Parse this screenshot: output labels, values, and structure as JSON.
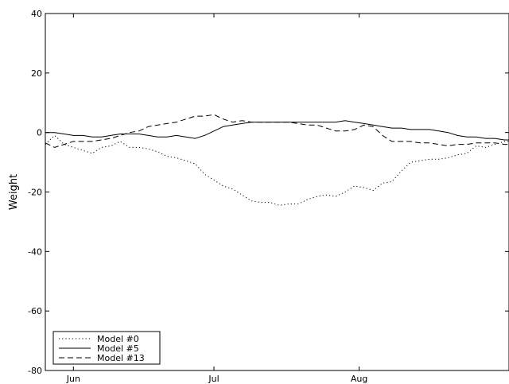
{
  "chart_data": {
    "type": "line",
    "ylabel": "Weight",
    "xlabel": "",
    "ylim": [
      -80,
      40
    ],
    "yticks": [
      40,
      20,
      0,
      -20,
      -40,
      -60,
      -80
    ],
    "xlim": [
      "2008-05-26",
      "2008-09-02"
    ],
    "xticks": [
      {
        "date": "2008-06-01",
        "label": "Jun"
      },
      {
        "date": "2008-07-01",
        "label": "Jul"
      },
      {
        "date": "2008-08-01",
        "label": "Aug"
      }
    ],
    "grid": false,
    "legend_position": "bottom-left",
    "series": [
      {
        "name": "Model #0",
        "style": "dotted",
        "points": [
          [
            "2008-05-26",
            -4
          ],
          [
            "2008-05-28",
            -1
          ],
          [
            "2008-05-30",
            -4
          ],
          [
            "2008-06-01",
            -5
          ],
          [
            "2008-06-03",
            -6
          ],
          [
            "2008-06-05",
            -7
          ],
          [
            "2008-06-07",
            -5
          ],
          [
            "2008-06-09",
            -4.5
          ],
          [
            "2008-06-11",
            -3
          ],
          [
            "2008-06-13",
            -5
          ],
          [
            "2008-06-15",
            -5
          ],
          [
            "2008-06-17",
            -5.5
          ],
          [
            "2008-06-19",
            -6.5
          ],
          [
            "2008-06-21",
            -8
          ],
          [
            "2008-06-23",
            -8.5
          ],
          [
            "2008-06-25",
            -9.5
          ],
          [
            "2008-06-27",
            -10.5
          ],
          [
            "2008-06-29",
            -14
          ],
          [
            "2008-07-01",
            -16
          ],
          [
            "2008-07-03",
            -18
          ],
          [
            "2008-07-05",
            -19
          ],
          [
            "2008-07-07",
            -21
          ],
          [
            "2008-07-09",
            -23
          ],
          [
            "2008-07-11",
            -23.5
          ],
          [
            "2008-07-13",
            -23.5
          ],
          [
            "2008-07-15",
            -24.5
          ],
          [
            "2008-07-17",
            -24
          ],
          [
            "2008-07-19",
            -24
          ],
          [
            "2008-07-21",
            -22.5
          ],
          [
            "2008-07-23",
            -21.5
          ],
          [
            "2008-07-25",
            -21
          ],
          [
            "2008-07-27",
            -21.5
          ],
          [
            "2008-07-29",
            -20
          ],
          [
            "2008-07-31",
            -18
          ],
          [
            "2008-08-02",
            -18.5
          ],
          [
            "2008-08-04",
            -19.5
          ],
          [
            "2008-08-06",
            -17
          ],
          [
            "2008-08-08",
            -16.5
          ],
          [
            "2008-08-10",
            -13
          ],
          [
            "2008-08-12",
            -10
          ],
          [
            "2008-08-14",
            -9.5
          ],
          [
            "2008-08-16",
            -9
          ],
          [
            "2008-08-18",
            -9
          ],
          [
            "2008-08-20",
            -8.5
          ],
          [
            "2008-08-22",
            -7.5
          ],
          [
            "2008-08-24",
            -7
          ],
          [
            "2008-08-26",
            -4.5
          ],
          [
            "2008-08-28",
            -5
          ],
          [
            "2008-08-30",
            -4
          ],
          [
            "2008-09-01",
            -3
          ],
          [
            "2008-09-02",
            -3
          ]
        ]
      },
      {
        "name": "Model #5",
        "style": "solid",
        "points": [
          [
            "2008-05-26",
            0
          ],
          [
            "2008-05-28",
            0
          ],
          [
            "2008-05-30",
            -0.5
          ],
          [
            "2008-06-01",
            -1
          ],
          [
            "2008-06-03",
            -1
          ],
          [
            "2008-06-05",
            -1.5
          ],
          [
            "2008-06-07",
            -1.5
          ],
          [
            "2008-06-09",
            -1
          ],
          [
            "2008-06-11",
            -0.5
          ],
          [
            "2008-06-13",
            -0.5
          ],
          [
            "2008-06-15",
            -0.5
          ],
          [
            "2008-06-17",
            -1
          ],
          [
            "2008-06-19",
            -1.5
          ],
          [
            "2008-06-21",
            -1.5
          ],
          [
            "2008-06-23",
            -1
          ],
          [
            "2008-06-25",
            -1.5
          ],
          [
            "2008-06-27",
            -2
          ],
          [
            "2008-06-29",
            -1
          ],
          [
            "2008-07-01",
            0.5
          ],
          [
            "2008-07-03",
            2
          ],
          [
            "2008-07-05",
            2.5
          ],
          [
            "2008-07-07",
            3
          ],
          [
            "2008-07-09",
            3.5
          ],
          [
            "2008-07-11",
            3.5
          ],
          [
            "2008-07-13",
            3.5
          ],
          [
            "2008-07-15",
            3.5
          ],
          [
            "2008-07-17",
            3.5
          ],
          [
            "2008-07-19",
            3.5
          ],
          [
            "2008-07-21",
            3.5
          ],
          [
            "2008-07-23",
            3.5
          ],
          [
            "2008-07-25",
            3.5
          ],
          [
            "2008-07-27",
            3.5
          ],
          [
            "2008-07-29",
            4
          ],
          [
            "2008-07-31",
            3.5
          ],
          [
            "2008-08-02",
            3
          ],
          [
            "2008-08-04",
            2.5
          ],
          [
            "2008-08-06",
            2
          ],
          [
            "2008-08-08",
            1.5
          ],
          [
            "2008-08-10",
            1.5
          ],
          [
            "2008-08-12",
            1
          ],
          [
            "2008-08-14",
            1
          ],
          [
            "2008-08-16",
            1
          ],
          [
            "2008-08-18",
            0.5
          ],
          [
            "2008-08-20",
            0
          ],
          [
            "2008-08-22",
            -1
          ],
          [
            "2008-08-24",
            -1.5
          ],
          [
            "2008-08-26",
            -1.5
          ],
          [
            "2008-08-28",
            -2
          ],
          [
            "2008-08-30",
            -2
          ],
          [
            "2008-09-01",
            -2.5
          ],
          [
            "2008-09-02",
            -2.5
          ]
        ]
      },
      {
        "name": "Model #13",
        "style": "dashed",
        "points": [
          [
            "2008-05-26",
            -3.5
          ],
          [
            "2008-05-28",
            -5
          ],
          [
            "2008-05-30",
            -4
          ],
          [
            "2008-06-01",
            -3
          ],
          [
            "2008-06-03",
            -3
          ],
          [
            "2008-06-05",
            -3
          ],
          [
            "2008-06-07",
            -2.5
          ],
          [
            "2008-06-09",
            -2
          ],
          [
            "2008-06-11",
            -1
          ],
          [
            "2008-06-13",
            0
          ],
          [
            "2008-06-15",
            0.5
          ],
          [
            "2008-06-17",
            2
          ],
          [
            "2008-06-19",
            2.5
          ],
          [
            "2008-06-21",
            3
          ],
          [
            "2008-06-23",
            3.5
          ],
          [
            "2008-06-25",
            4.5
          ],
          [
            "2008-06-27",
            5.5
          ],
          [
            "2008-06-29",
            5.5
          ],
          [
            "2008-07-01",
            6
          ],
          [
            "2008-07-03",
            4.5
          ],
          [
            "2008-07-05",
            3.5
          ],
          [
            "2008-07-07",
            4
          ],
          [
            "2008-07-09",
            3.5
          ],
          [
            "2008-07-11",
            3.5
          ],
          [
            "2008-07-13",
            3.5
          ],
          [
            "2008-07-15",
            3.5
          ],
          [
            "2008-07-17",
            3.5
          ],
          [
            "2008-07-19",
            3
          ],
          [
            "2008-07-21",
            2.5
          ],
          [
            "2008-07-23",
            2.5
          ],
          [
            "2008-07-25",
            1.5
          ],
          [
            "2008-07-27",
            0.5
          ],
          [
            "2008-07-29",
            0.5
          ],
          [
            "2008-07-31",
            1
          ],
          [
            "2008-08-02",
            2.5
          ],
          [
            "2008-08-04",
            2
          ],
          [
            "2008-08-06",
            -1
          ],
          [
            "2008-08-08",
            -3
          ],
          [
            "2008-08-10",
            -3
          ],
          [
            "2008-08-12",
            -3
          ],
          [
            "2008-08-14",
            -3.5
          ],
          [
            "2008-08-16",
            -3.5
          ],
          [
            "2008-08-18",
            -4
          ],
          [
            "2008-08-20",
            -4.5
          ],
          [
            "2008-08-22",
            -4
          ],
          [
            "2008-08-24",
            -4
          ],
          [
            "2008-08-26",
            -3.5
          ],
          [
            "2008-08-28",
            -3.5
          ],
          [
            "2008-08-30",
            -3.5
          ],
          [
            "2008-09-01",
            -4
          ],
          [
            "2008-09-02",
            -4
          ]
        ]
      }
    ]
  }
}
